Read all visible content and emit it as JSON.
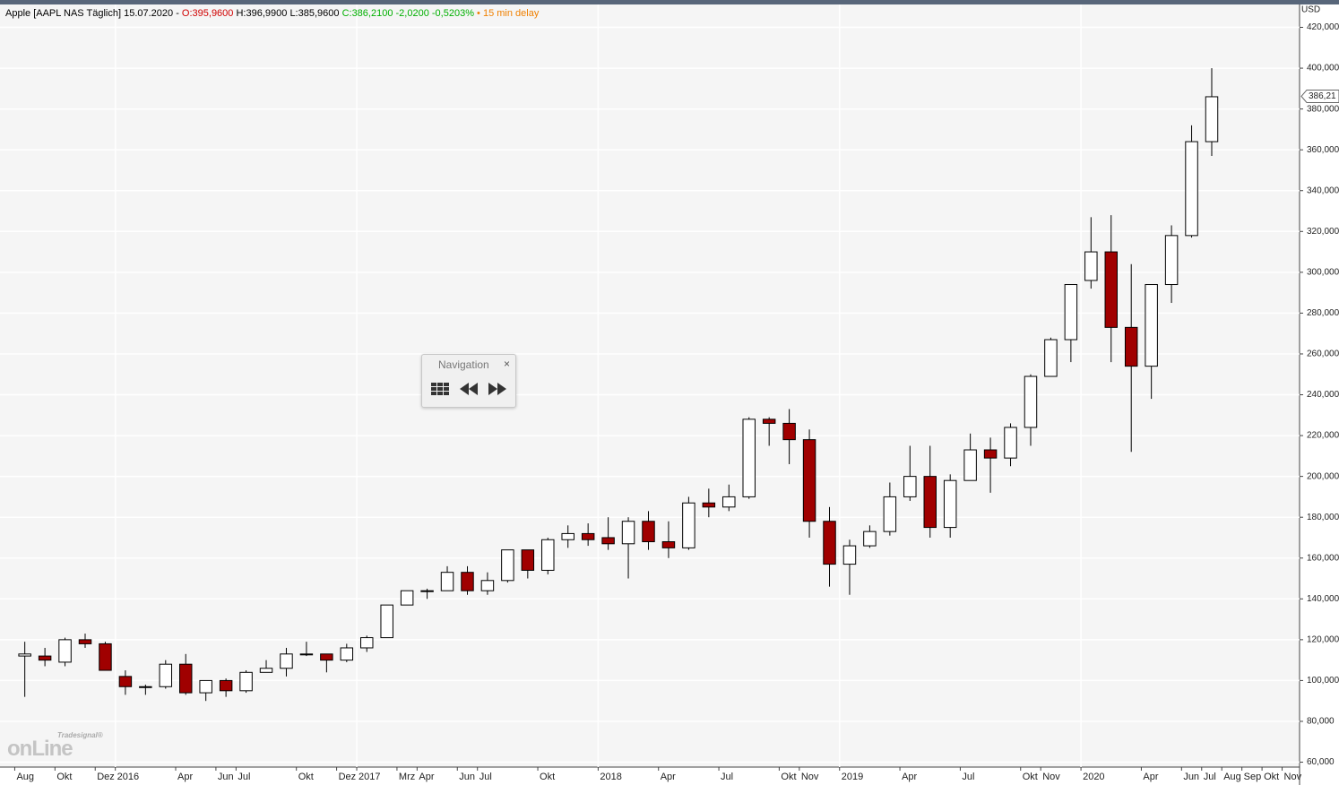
{
  "chart_data": {
    "type": "candlestick",
    "title": "Apple [AAPL NAS Täglich]",
    "date": "15.07.2020 -",
    "quote": {
      "open": "O:395,9600",
      "high": "H:396,9900",
      "low": "L:385,9600",
      "close": "C:386,2100",
      "change": "-2,0200",
      "change_pct": "-0,5203%",
      "delay": "• 15 min delay"
    },
    "y_unit": "USD",
    "last_price": {
      "value": 386.21,
      "label": "386,21"
    },
    "navigation": {
      "title": "Navigation",
      "close": "×"
    },
    "logo": {
      "brand": "Tradesignal®",
      "name": "onLine"
    },
    "x": [
      "2015-08",
      "2015-09",
      "2015-10",
      "2015-11",
      "2015-12",
      "2016-01",
      "2016-02",
      "2016-03",
      "2016-04",
      "2016-05",
      "2016-06",
      "2016-07",
      "2016-08",
      "2016-09",
      "2016-10",
      "2016-11",
      "2016-12",
      "2017-01",
      "2017-02",
      "2017-03",
      "2017-04",
      "2017-05",
      "2017-06",
      "2017-07",
      "2017-08",
      "2017-09",
      "2017-10",
      "2017-11",
      "2017-12",
      "2018-01",
      "2018-02",
      "2018-03",
      "2018-04",
      "2018-05",
      "2018-06",
      "2018-07",
      "2018-08",
      "2018-09",
      "2018-10",
      "2018-11",
      "2018-12",
      "2019-01",
      "2019-02",
      "2019-03",
      "2019-04",
      "2019-05",
      "2019-06",
      "2019-07",
      "2019-08",
      "2019-09",
      "2019-10",
      "2019-11",
      "2019-12",
      "2020-01",
      "2020-02",
      "2020-03",
      "2020-04",
      "2020-05",
      "2020-06",
      "2020-07"
    ],
    "open": [
      112,
      112,
      109,
      120,
      118,
      102,
      97,
      97,
      108,
      94,
      100,
      95,
      104,
      106,
      113,
      113,
      110,
      116,
      121,
      137,
      144,
      144,
      153,
      144,
      149,
      164,
      154,
      169,
      172,
      170,
      167,
      178,
      168,
      165,
      187,
      185,
      190,
      228,
      226,
      218,
      178,
      157,
      166,
      173,
      190,
      200,
      175,
      198,
      213,
      209,
      224,
      249,
      267,
      296,
      310,
      273,
      254,
      294,
      318,
      364
    ],
    "high": [
      119,
      116,
      121,
      123,
      119,
      105,
      98,
      110,
      113,
      100,
      101,
      105,
      110,
      116,
      119,
      113,
      118,
      122,
      137,
      144,
      145,
      156,
      156,
      153,
      164,
      164,
      170,
      176,
      177,
      180,
      180,
      183,
      178,
      190,
      194,
      196,
      229,
      229,
      233,
      223,
      185,
      169,
      176,
      197,
      215,
      215,
      201,
      221,
      219,
      226,
      250,
      268,
      294,
      327,
      328,
      304,
      294,
      323,
      372,
      400
    ],
    "low": [
      92,
      107,
      107,
      116,
      105,
      93,
      93,
      96,
      93,
      90,
      92,
      94,
      104,
      102,
      112,
      104,
      109,
      114,
      121,
      137,
      140,
      144,
      142,
      142,
      148,
      150,
      152,
      165,
      166,
      164,
      150,
      164,
      160,
      164,
      180,
      183,
      189,
      215,
      206,
      170,
      146,
      142,
      165,
      171,
      188,
      170,
      170,
      198,
      192,
      205,
      215,
      249,
      256,
      292,
      256,
      212,
      238,
      285,
      317,
      357
    ],
    "close": [
      113,
      110,
      120,
      118,
      105,
      97,
      97,
      108,
      94,
      100,
      95,
      104,
      106,
      113,
      113,
      110,
      116,
      121,
      137,
      144,
      144,
      153,
      144,
      149,
      164,
      154,
      169,
      172,
      169,
      167,
      178,
      168,
      165,
      187,
      185,
      190,
      228,
      226,
      218,
      178,
      157,
      166,
      173,
      190,
      200,
      175,
      198,
      213,
      209,
      224,
      249,
      267,
      294,
      310,
      273,
      254,
      294,
      318,
      364,
      386
    ],
    "up_color": "#ffffff",
    "down_color": "#a00000",
    "outline_color": "#000000",
    "xlim": [
      "2015-07",
      "2020-12"
    ],
    "xticks": [
      {
        "value": "2015-08",
        "label": "Aug"
      },
      {
        "value": "2015-10",
        "label": "Okt"
      },
      {
        "value": "2015-12",
        "label": "Dez"
      },
      {
        "value": "2016-01",
        "label": "2016"
      },
      {
        "value": "2016-04",
        "label": "Apr"
      },
      {
        "value": "2016-06",
        "label": "Jun"
      },
      {
        "value": "2016-07",
        "label": "Jul"
      },
      {
        "value": "2016-10",
        "label": "Okt"
      },
      {
        "value": "2016-12",
        "label": "Dez"
      },
      {
        "value": "2017-01",
        "label": "2017"
      },
      {
        "value": "2017-03",
        "label": "Mrz"
      },
      {
        "value": "2017-04",
        "label": "Apr"
      },
      {
        "value": "2017-06",
        "label": "Jun"
      },
      {
        "value": "2017-07",
        "label": "Jul"
      },
      {
        "value": "2017-10",
        "label": "Okt"
      },
      {
        "value": "2018-01",
        "label": "2018"
      },
      {
        "value": "2018-04",
        "label": "Apr"
      },
      {
        "value": "2018-07",
        "label": "Jul"
      },
      {
        "value": "2018-10",
        "label": "Okt"
      },
      {
        "value": "2018-11",
        "label": "Nov"
      },
      {
        "value": "2019-01",
        "label": "2019"
      },
      {
        "value": "2019-04",
        "label": "Apr"
      },
      {
        "value": "2019-07",
        "label": "Jul"
      },
      {
        "value": "2019-10",
        "label": "Okt"
      },
      {
        "value": "2019-11",
        "label": "Nov"
      },
      {
        "value": "2020-01",
        "label": "2020"
      },
      {
        "value": "2020-04",
        "label": "Apr"
      },
      {
        "value": "2020-06",
        "label": "Jun"
      },
      {
        "value": "2020-07",
        "label": "Jul"
      },
      {
        "value": "2020-08",
        "label": "Aug"
      },
      {
        "value": "2020-09",
        "label": "Sep"
      },
      {
        "value": "2020-10",
        "label": "Okt"
      },
      {
        "value": "2020-11",
        "label": "Nov"
      }
    ],
    "ylim": [
      57.6,
      431.2
    ],
    "yticks": [
      {
        "value": 60,
        "label": "60,000"
      },
      {
        "value": 80,
        "label": "80,000"
      },
      {
        "value": 100,
        "label": "100,000"
      },
      {
        "value": 120,
        "label": "120,000"
      },
      {
        "value": 140,
        "label": "140,000"
      },
      {
        "value": 160,
        "label": "160,000"
      },
      {
        "value": 180,
        "label": "180,000"
      },
      {
        "value": 200,
        "label": "200,000"
      },
      {
        "value": 220,
        "label": "220,000"
      },
      {
        "value": 240,
        "label": "240,000"
      },
      {
        "value": 260,
        "label": "260,000"
      },
      {
        "value": 280,
        "label": "280,000"
      },
      {
        "value": 300,
        "label": "300,000"
      },
      {
        "value": 320,
        "label": "320,000"
      },
      {
        "value": 340,
        "label": "340,000"
      },
      {
        "value": 360,
        "label": "360,000"
      },
      {
        "value": 380,
        "label": "380,000"
      },
      {
        "value": 400,
        "label": "400,000"
      },
      {
        "value": 420,
        "label": "420,000"
      }
    ],
    "grid": true
  }
}
